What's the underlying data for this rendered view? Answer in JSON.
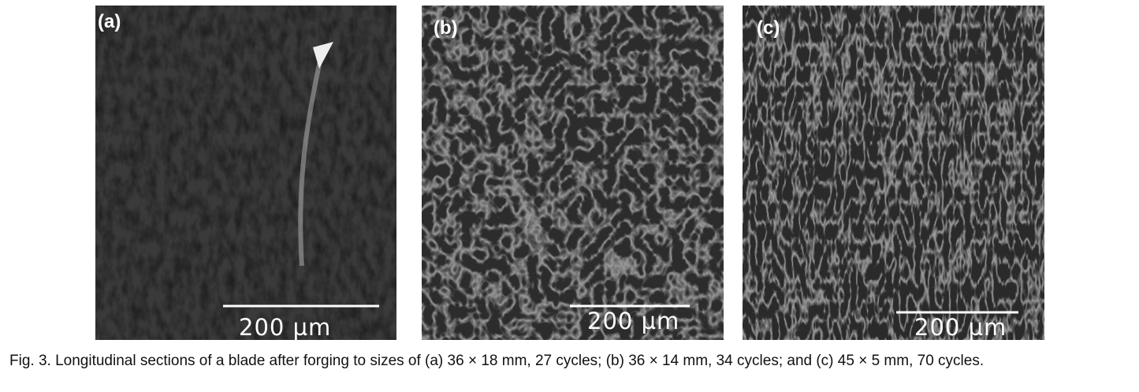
{
  "figure": {
    "panels": [
      {
        "label": "(a)",
        "scale": "200 µm"
      },
      {
        "label": "(b)",
        "scale": "200 µm"
      },
      {
        "label": "(c)",
        "scale": "200 µm"
      }
    ],
    "caption": "Fig. 3.  Longitudinal sections of a blade after forging to sizes of (a) 36 × 18 mm, 27 cycles; (b) 36 × 14 mm, 34 cycles; and (c) 45 × 5 mm, 70 cycles."
  }
}
